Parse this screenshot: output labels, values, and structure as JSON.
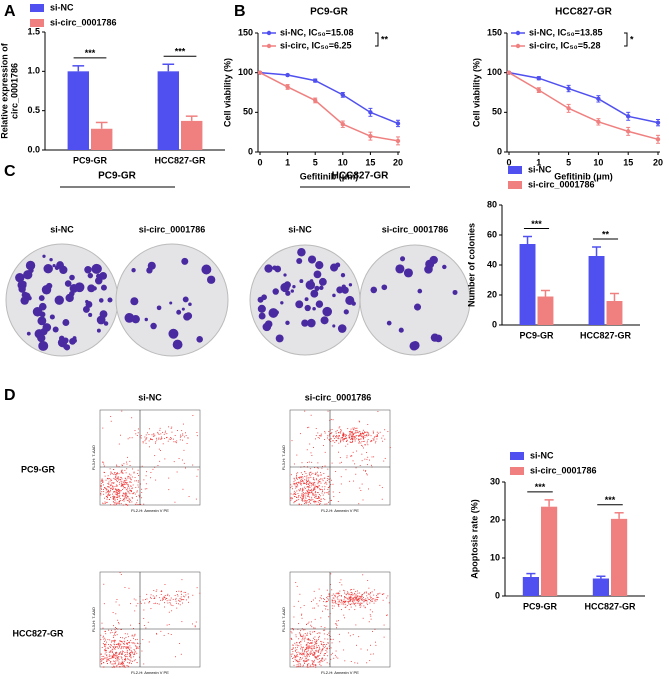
{
  "chart_data": [
    {
      "type": "bar",
      "ylabel": [
        "Relative expression of",
        "circ_0001786"
      ],
      "categories": [
        "PC9-GR",
        "HCC827-GR"
      ],
      "series": [
        {
          "name": "si-NC",
          "color": "#5050f0",
          "values": [
            1.0,
            1.0
          ],
          "errors": [
            0.07,
            0.09
          ]
        },
        {
          "name": "si-circ_0001786",
          "color": "#f08080",
          "values": [
            0.27,
            0.37
          ],
          "errors": [
            0.08,
            0.06
          ]
        }
      ],
      "significance": [
        "***",
        "***"
      ],
      "ylim": [
        0,
        1.5
      ],
      "yticks": [
        {
          "value": 0,
          "label": "0.0"
        },
        0.5,
        {
          "value": 1,
          "label": "1.0"
        },
        1.5
      ]
    },
    {
      "type": "line",
      "title": "PC9-GR",
      "ylabel": "Cell viability (%)",
      "xlabel": "Gefitinib (μm)",
      "categories": [
        "0",
        "1",
        "5",
        "10",
        "15",
        "20"
      ],
      "series": [
        {
          "name": "si-NC, IC₅₀=15.08",
          "color": "#5050f0",
          "values": [
            100,
            97,
            90,
            72,
            50,
            36
          ],
          "errors": [
            1,
            1,
            2,
            3,
            5,
            4
          ]
        },
        {
          "name": "si-circ, IC₅₀=6.25",
          "color": "#f08080",
          "values": [
            100,
            82,
            65,
            35,
            20,
            14
          ],
          "errors": [
            1,
            3,
            3,
            4,
            5,
            5
          ]
        }
      ],
      "significance": "**",
      "ylim": [
        0,
        150
      ],
      "yticks": [
        0,
        50,
        100,
        150
      ]
    },
    {
      "type": "line",
      "title": "HCC827-GR",
      "ylabel": "Cell viability (%)",
      "xlabel": "Gefitinib (μm)",
      "categories": [
        "0",
        "1",
        "5",
        "10",
        "15",
        "20"
      ],
      "series": [
        {
          "name": "si-NC, IC₅₀=13.85",
          "color": "#5050f0",
          "values": [
            100,
            93,
            80,
            67,
            45,
            37
          ],
          "errors": [
            1,
            2,
            4,
            4,
            5,
            4
          ]
        },
        {
          "name": "si-circ, IC₅₀=5.28",
          "color": "#f08080",
          "values": [
            100,
            78,
            55,
            38,
            26,
            16
          ],
          "errors": [
            1,
            3,
            5,
            4,
            5,
            5
          ]
        }
      ],
      "significance": "*",
      "ylim": [
        0,
        150
      ],
      "yticks": [
        0,
        50,
        100,
        150
      ]
    },
    {
      "type": "bar",
      "ylabel": "Number of colonies",
      "categories": [
        "PC9-GR",
        "HCC827-GR"
      ],
      "series": [
        {
          "name": "si-NC",
          "color": "#5050f0",
          "values": [
            54,
            46
          ],
          "errors": [
            5,
            6
          ]
        },
        {
          "name": "si-circ_0001786",
          "color": "#f08080",
          "values": [
            19,
            16
          ],
          "errors": [
            4,
            5
          ]
        }
      ],
      "significance": [
        "***",
        "**"
      ],
      "ylim": [
        0,
        80
      ],
      "yticks": [
        0,
        20,
        40,
        60,
        80
      ]
    },
    {
      "type": "bar",
      "ylabel": "Apoptosis rate (%)",
      "categories": [
        "PC9-GR",
        "HCC827-GR"
      ],
      "series": [
        {
          "name": "si-NC",
          "color": "#5050f0",
          "values": [
            5,
            4.6
          ],
          "errors": [
            0.9,
            0.6
          ]
        },
        {
          "name": "si-circ_0001786",
          "color": "#f08080",
          "values": [
            23.5,
            20.3
          ],
          "errors": [
            1.8,
            1.6
          ]
        }
      ],
      "significance": [
        "***",
        "***"
      ],
      "ylim": [
        0,
        30
      ],
      "yticks": [
        0,
        10,
        20,
        30
      ]
    }
  ],
  "panel_labels": [
    "A",
    "B",
    "C",
    "D"
  ],
  "colony": {
    "groups": [
      "PC9-GR",
      "HCC827-GR"
    ],
    "conditions": [
      "si-NC",
      "si-circ_0001786",
      "si-NC",
      "si-circ_0001786"
    ]
  },
  "flow": {
    "columns": [
      "si-NC",
      "si-circ_0001786"
    ],
    "rows": [
      "PC9-GR",
      "HCC827-GR"
    ],
    "xlabel": "FL2-H: Annexin V PE",
    "ylabel": "FL3-H: 7-AAD"
  }
}
